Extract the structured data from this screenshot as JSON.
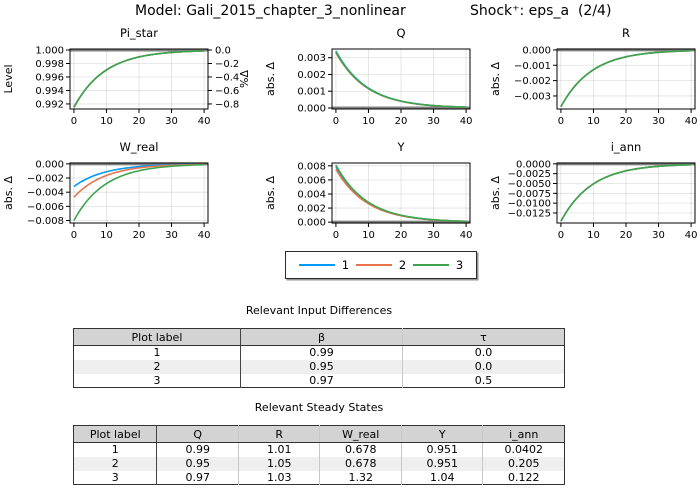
{
  "header": {
    "model_title": "Model: Gali_2015_chapter_3_nonlinear",
    "shock_title": "Shock⁺: eps_a  (2/4)"
  },
  "palette": {
    "1": "#009af9",
    "2": "#e8734c",
    "3": "#3da44e"
  },
  "legend": {
    "items": [
      {
        "label": "1"
      },
      {
        "label": "2"
      },
      {
        "label": "3"
      }
    ]
  },
  "chart_data": [
    {
      "type": "line",
      "title": "Pi_star",
      "ylabel": "Level",
      "x": [
        0,
        5,
        10,
        15,
        20,
        25,
        30,
        35,
        40
      ],
      "xticks": [
        0,
        10,
        20,
        30,
        40
      ],
      "xlim": [
        -1.2,
        41.2
      ],
      "ylim": [
        0.99125,
        1.00015
      ],
      "ss": 1.0,
      "yticks": [
        1.0,
        0.998,
        0.996,
        0.994,
        0.992
      ],
      "ytick_labels": [
        "1.000",
        "0.998",
        "0.996",
        "0.994",
        "0.992"
      ],
      "right_axis": {
        "label": "%Δ",
        "labels": [
          "0.0",
          "−0.2",
          "−0.4",
          "−0.6",
          "−0.8"
        ]
      },
      "series": [
        {
          "name": "1",
          "values": [
            0.9915,
            0.99498,
            0.99704,
            0.99825,
            0.99897,
            0.99939,
            0.99964,
            0.99979,
            0.99987
          ]
        },
        {
          "name": "2",
          "values": [
            0.9915,
            0.99498,
            0.99704,
            0.99825,
            0.99897,
            0.99939,
            0.99964,
            0.99979,
            0.99987
          ]
        },
        {
          "name": "3",
          "values": [
            0.9915,
            0.99498,
            0.99704,
            0.99825,
            0.99897,
            0.99939,
            0.99964,
            0.99979,
            0.99987
          ]
        }
      ]
    },
    {
      "type": "line",
      "title": "Q",
      "ylabel": "abs. Δ",
      "x": [
        0,
        5,
        10,
        15,
        20,
        25,
        30,
        35,
        40
      ],
      "xticks": [
        0,
        10,
        20,
        30,
        40
      ],
      "xlim": [
        -1.2,
        41.2
      ],
      "ylim": [
        -6e-05,
        0.00352
      ],
      "ss": 0,
      "yticks": [
        0.003,
        0.002,
        0.001,
        0
      ],
      "ytick_labels": [
        "0.003",
        "0.002",
        "0.001",
        "0.000"
      ],
      "series": [
        {
          "name": "1",
          "values": [
            0.0034,
            0.002008,
            0.001186,
            0.0007,
            0.000413,
            0.000244,
            0.000144,
            8.5e-05,
            5e-05
          ]
        },
        {
          "name": "2",
          "values": [
            0.0033,
            0.001949,
            0.001151,
            0.000679,
            0.000401,
            0.000237,
            0.00014,
            8.3e-05,
            4.9e-05
          ]
        },
        {
          "name": "3",
          "values": [
            0.00335,
            0.001978,
            0.001168,
            0.00069,
            0.000407,
            0.00024,
            0.000142,
            8.4e-05,
            5e-05
          ]
        }
      ]
    },
    {
      "type": "line",
      "title": "R",
      "ylabel": "abs. Δ",
      "x": [
        0,
        5,
        10,
        15,
        20,
        25,
        30,
        35,
        40
      ],
      "xticks": [
        0,
        10,
        20,
        30,
        40
      ],
      "xlim": [
        -1.2,
        41.2
      ],
      "ylim": [
        -0.00385,
        6e-05
      ],
      "ss": 0,
      "yticks": [
        0,
        -0.001,
        -0.002,
        -0.003
      ],
      "ytick_labels": [
        "0.000",
        "−0.001",
        "−0.002",
        "−0.003"
      ],
      "series": [
        {
          "name": "1",
          "values": [
            -0.0037,
            -0.002185,
            -0.00129,
            -0.000762,
            -0.00045,
            -0.000266,
            -0.000157,
            -9.3e-05,
            -5.5e-05
          ]
        },
        {
          "name": "2",
          "values": [
            -0.0037,
            -0.002185,
            -0.00129,
            -0.000762,
            -0.00045,
            -0.000266,
            -0.000157,
            -9.3e-05,
            -5.5e-05
          ]
        },
        {
          "name": "3",
          "values": [
            -0.0037,
            -0.002185,
            -0.00129,
            -0.000762,
            -0.00045,
            -0.000266,
            -0.000157,
            -9.3e-05,
            -5.5e-05
          ]
        }
      ]
    },
    {
      "type": "line",
      "title": "W_real",
      "ylabel": "abs. Δ",
      "x": [
        0,
        5,
        10,
        15,
        20,
        25,
        30,
        35,
        40
      ],
      "xticks": [
        0,
        10,
        20,
        30,
        40
      ],
      "xlim": [
        -1.2,
        41.2
      ],
      "ylim": [
        -0.00835,
        0.00012
      ],
      "ss": 0,
      "yticks": [
        0,
        -0.002,
        -0.004,
        -0.006,
        -0.008
      ],
      "ytick_labels": [
        "0.000",
        "−0.002",
        "−0.004",
        "−0.006",
        "−0.008"
      ],
      "series": [
        {
          "name": "1",
          "values": [
            -0.0032,
            -0.00189,
            -0.001116,
            -0.000659,
            -0.000389,
            -0.00023,
            -0.000136,
            -8e-05,
            -4.7e-05
          ]
        },
        {
          "name": "2",
          "values": [
            -0.0047,
            -0.002775,
            -0.001639,
            -0.000968,
            -0.000571,
            -0.000337,
            -0.000199,
            -0.000118,
            -6.9e-05
          ]
        },
        {
          "name": "3",
          "values": [
            -0.008,
            -0.004724,
            -0.002789,
            -0.001647,
            -0.000973,
            -0.000574,
            -0.000339,
            -0.0002,
            -0.000118
          ]
        }
      ]
    },
    {
      "type": "line",
      "title": "Y",
      "ylabel": "abs. Δ",
      "x": [
        0,
        5,
        10,
        15,
        20,
        25,
        30,
        35,
        40
      ],
      "xticks": [
        0,
        10,
        20,
        30,
        40
      ],
      "xlim": [
        -1.2,
        41.2
      ],
      "ylim": [
        -0.00012,
        0.0084
      ],
      "ss": 0,
      "yticks": [
        0.008,
        0.006,
        0.004,
        0.002,
        0
      ],
      "ytick_labels": [
        "0.008",
        "0.006",
        "0.004",
        "0.002",
        "0.000"
      ],
      "series": [
        {
          "name": "1",
          "values": [
            0.0079,
            0.004665,
            0.002755,
            0.001627,
            0.00096,
            0.000567,
            0.000335,
            0.000198,
            0.000117
          ]
        },
        {
          "name": "2",
          "values": [
            0.0075,
            0.004429,
            0.002615,
            0.001544,
            0.000912,
            0.000538,
            0.000318,
            0.000188,
            0.000111
          ]
        },
        {
          "name": "3",
          "values": [
            0.0081,
            0.004783,
            0.002824,
            0.001668,
            0.000985,
            0.000582,
            0.000343,
            0.000203,
            0.00012
          ]
        }
      ]
    },
    {
      "type": "line",
      "title": "i_ann",
      "ylabel": "abs. Δ",
      "x": [
        0,
        5,
        10,
        15,
        20,
        25,
        30,
        35,
        40
      ],
      "xticks": [
        0,
        10,
        20,
        30,
        40
      ],
      "xlim": [
        -1.2,
        41.2
      ],
      "ylim": [
        -0.01505,
        0.00022
      ],
      "ss": 0,
      "yticks": [
        0,
        -0.0025,
        -0.005,
        -0.0075,
        -0.01,
        -0.0125
      ],
      "ytick_labels": [
        "0.0000",
        "−0.0025",
        "−0.0050",
        "−0.0075",
        "−0.0100",
        "−0.0125"
      ],
      "series": [
        {
          "name": "1",
          "values": [
            -0.0146,
            -0.008621,
            -0.005091,
            -0.003006,
            -0.001775,
            -0.001048,
            -0.000619,
            -0.000365,
            -0.000216
          ]
        },
        {
          "name": "2",
          "values": [
            -0.0146,
            -0.008621,
            -0.005091,
            -0.003006,
            -0.001775,
            -0.001048,
            -0.000619,
            -0.000365,
            -0.000216
          ]
        },
        {
          "name": "3",
          "values": [
            -0.0146,
            -0.008621,
            -0.005091,
            -0.003006,
            -0.001775,
            -0.001048,
            -0.000619,
            -0.000365,
            -0.000216
          ]
        }
      ]
    }
  ],
  "tables": [
    {
      "title": "Relevant Input Differences",
      "columns": [
        "Plot label",
        "β",
        "τ"
      ],
      "rows": [
        [
          "1",
          "0.99",
          "0.0"
        ],
        [
          "2",
          "0.95",
          "0.0"
        ],
        [
          "3",
          "0.97",
          "0.5"
        ]
      ]
    },
    {
      "title": "Relevant Steady States",
      "columns": [
        "Plot label",
        "Q",
        "R",
        "W_real",
        "Y",
        "i_ann"
      ],
      "rows": [
        [
          "1",
          "0.99",
          "1.01",
          "0.678",
          "0.951",
          "0.0402"
        ],
        [
          "2",
          "0.95",
          "1.05",
          "0.678",
          "0.951",
          "0.205"
        ],
        [
          "3",
          "0.97",
          "1.03",
          "1.32",
          "1.04",
          "0.122"
        ]
      ]
    }
  ]
}
